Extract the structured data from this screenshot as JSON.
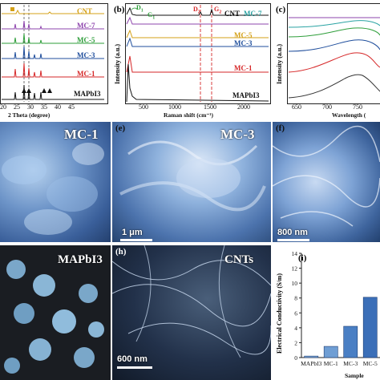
{
  "panel_a": {
    "series": [
      "CNT",
      "MC-7",
      "MC-5",
      "MC-3",
      "MC-1",
      "MAPbI3"
    ],
    "series_colors": [
      "#d4a017",
      "#8e44ad",
      "#2e9e3a",
      "#1f4e9c",
      "#d62728",
      "#111111"
    ],
    "xticks": [
      "20",
      "25",
      "30",
      "35",
      "40",
      "45"
    ],
    "xlabel": "2 Theta (degree)"
  },
  "panel_b": {
    "tag": "(b)",
    "ylabel": "Intensity (a.u.)",
    "xlabel": "Raman shift (cm⁻¹)",
    "xticks": [
      "500",
      "1000",
      "1500",
      "2000"
    ],
    "peaks": {
      "d1": "D",
      "d1sub": "1",
      "g1": "G",
      "g1sub": "1",
      "d2": "D",
      "d2sub": "2",
      "g2": "G",
      "g2sub": "2"
    },
    "series": [
      "CNT",
      "MC-7",
      "MC-5",
      "MC-3",
      "MC-1",
      "MAPbI3"
    ],
    "series_colors": [
      "#111111",
      "#8e44ad",
      "#d4a017",
      "#1f4e9c",
      "#d62728",
      "#111111"
    ]
  },
  "panel_c": {
    "tag": "(c)",
    "ylabel": "Intensity (a.u.)",
    "xlabel": "Wavelength (",
    "xticks": [
      "650",
      "700",
      "750"
    ]
  },
  "sem": {
    "d_label": "MC-1",
    "e_tag": "(e)",
    "e_label": "MC-3",
    "e_scale": "1 μm",
    "f_tag": "(f)",
    "f_scale": "800 nm",
    "g_label": "MAPbI3",
    "h_tag": "(h)",
    "h_label": "CNTs",
    "h_scale": "600 nm"
  },
  "panel_i": {
    "tag": "(i)",
    "ylabel": "Electrical Conductivity (S/m)",
    "xlabel": "Sample",
    "chart_data": {
      "type": "bar",
      "categories": [
        "MAPbI3",
        "MC-1",
        "MC-3",
        "MC-5"
      ],
      "values": [
        0.2,
        1.5,
        4.2,
        8.1
      ],
      "ylim": [
        0,
        14
      ],
      "yticks": [
        "0",
        "2",
        "4",
        "6",
        "8",
        "10",
        "12",
        "14"
      ],
      "xlabel": "Sample",
      "ylabel": "Electrical Conductivity (S/m)"
    }
  }
}
